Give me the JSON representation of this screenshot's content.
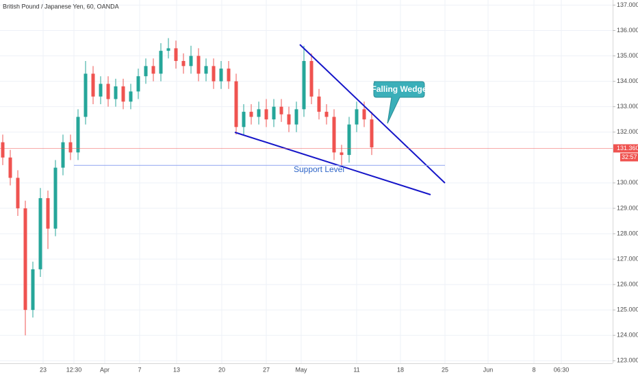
{
  "chart_data": {
    "type": "candlestick",
    "title": "British Pound / Japanese Yen, 60, OANDA",
    "up_color": "#26a69a",
    "down_color": "#ef5350",
    "grid": true,
    "ylim": [
      122.9,
      137.2
    ],
    "yticks": [
      {
        "value": 137,
        "label": "137.000"
      },
      {
        "value": 136,
        "label": "136.000"
      },
      {
        "value": 135,
        "label": "135.000"
      },
      {
        "value": 134,
        "label": "134.000"
      },
      {
        "value": 133,
        "label": "133.000"
      },
      {
        "value": 132,
        "label": "132.000"
      },
      {
        "value": 130,
        "label": "130.000"
      },
      {
        "value": 129,
        "label": "129.000"
      },
      {
        "value": 128,
        "label": "128.000"
      },
      {
        "value": 127,
        "label": "127.000"
      },
      {
        "value": 126,
        "label": "126.000"
      },
      {
        "value": 125,
        "label": "125.000"
      },
      {
        "value": 124,
        "label": "124.000"
      },
      {
        "value": 123,
        "label": "123.000"
      }
    ],
    "xtick_labels": [
      "23",
      "12:30",
      "Apr",
      "7",
      "13",
      "20",
      "27",
      "May",
      "11",
      "18",
      "25",
      "Jun",
      "8",
      "06:30"
    ],
    "open": [
      131.6,
      131.0,
      130.2,
      129.0,
      125.0,
      126.6,
      129.4,
      128.2,
      130.6,
      131.6,
      131.2,
      132.6,
      134.3,
      133.4,
      133.9,
      133.3,
      133.8,
      133.2,
      133.6,
      134.2,
      134.6,
      134.3,
      135.2,
      135.3,
      134.8,
      134.6,
      135.0,
      134.3,
      134.6,
      134.0,
      134.5,
      134.0,
      132.2,
      132.8,
      132.6,
      132.9,
      132.5,
      133.0,
      132.7,
      132.3,
      132.9,
      134.8,
      133.4,
      132.8,
      132.6,
      131.2,
      131.1,
      132.3,
      132.9,
      132.5
    ],
    "high": [
      131.9,
      131.3,
      130.5,
      129.3,
      126.9,
      129.8,
      129.7,
      130.9,
      131.9,
      131.9,
      132.9,
      134.8,
      134.6,
      134.2,
      134.2,
      134.1,
      134.1,
      133.9,
      134.5,
      134.9,
      134.9,
      135.5,
      135.7,
      135.6,
      135.1,
      135.4,
      135.3,
      134.9,
      134.9,
      134.8,
      134.8,
      134.3,
      133.1,
      133.1,
      133.2,
      133.3,
      133.3,
      133.3,
      133.0,
      133.2,
      135.4,
      135.1,
      133.7,
      133.1,
      132.9,
      131.5,
      132.6,
      133.2,
      133.2,
      132.8
    ],
    "low": [
      130.7,
      129.9,
      128.7,
      124.0,
      124.7,
      126.3,
      127.4,
      127.9,
      130.3,
      130.9,
      130.9,
      132.3,
      133.1,
      133.1,
      133.0,
      133.0,
      132.9,
      132.9,
      133.3,
      133.9,
      134.0,
      134.0,
      134.9,
      134.5,
      134.3,
      134.3,
      134.0,
      134.0,
      133.7,
      133.7,
      133.7,
      131.9,
      131.9,
      132.3,
      132.3,
      132.2,
      132.2,
      132.4,
      132.0,
      132.0,
      132.6,
      133.1,
      132.5,
      132.3,
      130.9,
      130.7,
      130.8,
      132.0,
      132.2,
      131.1
    ],
    "close": [
      131.0,
      130.2,
      129.0,
      125.0,
      126.6,
      129.4,
      128.2,
      130.6,
      131.6,
      131.2,
      132.6,
      134.3,
      133.4,
      133.9,
      133.3,
      133.8,
      133.2,
      133.6,
      134.2,
      134.6,
      134.3,
      135.2,
      135.3,
      134.8,
      134.6,
      135.0,
      134.3,
      134.6,
      134.0,
      134.5,
      134.0,
      132.2,
      132.8,
      132.6,
      132.9,
      132.5,
      133.0,
      132.7,
      132.3,
      132.9,
      134.8,
      133.4,
      132.8,
      132.6,
      131.2,
      131.1,
      132.3,
      132.9,
      132.5,
      131.4
    ],
    "current_price": {
      "value": 131.36,
      "label": "131.360"
    },
    "countdown": "32:57",
    "support_level": {
      "label": "Support Level",
      "value": 130.69
    },
    "annotation": "Falling Wedge"
  }
}
